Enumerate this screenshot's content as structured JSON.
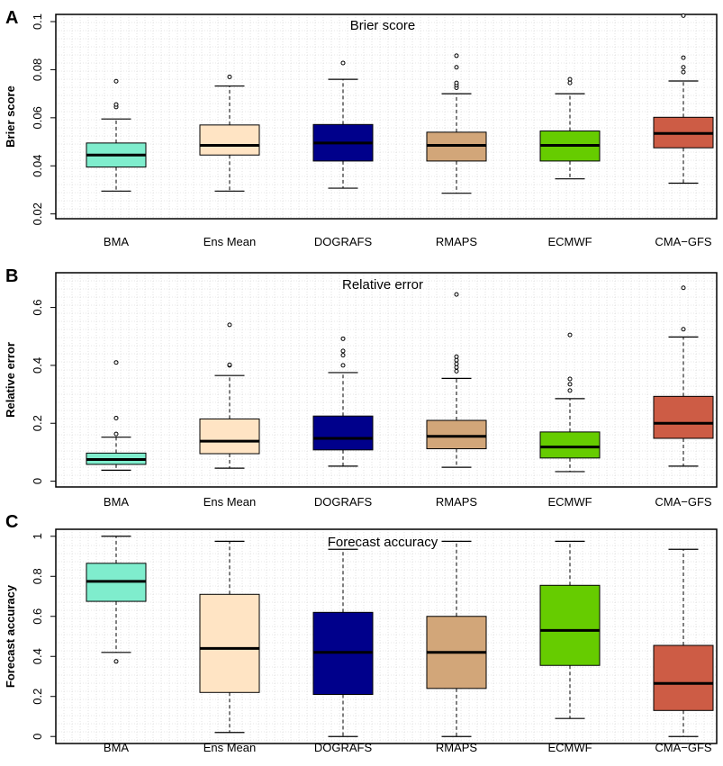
{
  "chart_data": [
    {
      "panel": "A",
      "type": "box",
      "title": "Brier score",
      "ylabel": "Brier score",
      "xlabel": "",
      "ylim": [
        0.018,
        0.103
      ],
      "yticks": [
        0.02,
        0.04,
        0.06,
        0.08,
        0.1
      ],
      "ytick_labels": [
        "0.02",
        "0.04",
        "0.06",
        "0.08",
        "0.1"
      ],
      "grid": true,
      "categories": [
        "BMA",
        "Ens Mean",
        "DOGRAFS",
        "RMAPS",
        "ECMWF",
        "CMA−GFS"
      ],
      "boxes": [
        {
          "min": 0.0295,
          "q1": 0.0395,
          "median": 0.0445,
          "q3": 0.0495,
          "max": 0.0595,
          "outliers": [
            0.0645,
            0.0655,
            0.0752
          ]
        },
        {
          "min": 0.0295,
          "q1": 0.0445,
          "median": 0.0485,
          "q3": 0.057,
          "max": 0.0732,
          "outliers": [
            0.077
          ]
        },
        {
          "min": 0.0307,
          "q1": 0.042,
          "median": 0.0495,
          "q3": 0.0572,
          "max": 0.076,
          "outliers": [
            0.0828
          ]
        },
        {
          "min": 0.0286,
          "q1": 0.042,
          "median": 0.0485,
          "q3": 0.054,
          "max": 0.07,
          "outliers": [
            0.0725,
            0.0735,
            0.0745,
            0.081,
            0.0858
          ]
        },
        {
          "min": 0.0346,
          "q1": 0.042,
          "median": 0.0485,
          "q3": 0.0545,
          "max": 0.07,
          "outliers": [
            0.0745,
            0.076
          ]
        },
        {
          "min": 0.0328,
          "q1": 0.0475,
          "median": 0.0535,
          "q3": 0.0602,
          "max": 0.0753,
          "outliers": [
            0.079,
            0.081,
            0.085,
            0.1025
          ]
        }
      ]
    },
    {
      "panel": "B",
      "type": "box",
      "title": "Relative error",
      "ylabel": "Relative error",
      "xlabel": "",
      "ylim": [
        -0.02,
        0.72
      ],
      "yticks": [
        0,
        0.2,
        0.4,
        0.6
      ],
      "ytick_labels": [
        "0",
        "0.2",
        "0.4",
        "0.6"
      ],
      "grid": true,
      "categories": [
        "BMA",
        "Ens Mean",
        "DOGRAFS",
        "RMAPS",
        "ECMWF",
        "CMA−GFS"
      ],
      "boxes": [
        {
          "min": 0.038,
          "q1": 0.058,
          "median": 0.075,
          "q3": 0.097,
          "max": 0.152,
          "outliers": [
            0.163,
            0.218,
            0.41
          ]
        },
        {
          "min": 0.045,
          "q1": 0.095,
          "median": 0.138,
          "q3": 0.215,
          "max": 0.365,
          "outliers": [
            0.4,
            0.402,
            0.54
          ]
        },
        {
          "min": 0.052,
          "q1": 0.108,
          "median": 0.148,
          "q3": 0.225,
          "max": 0.375,
          "outliers": [
            0.4,
            0.435,
            0.45,
            0.492
          ]
        },
        {
          "min": 0.048,
          "q1": 0.112,
          "median": 0.155,
          "q3": 0.21,
          "max": 0.355,
          "outliers": [
            0.38,
            0.393,
            0.405,
            0.418,
            0.43,
            0.645
          ]
        },
        {
          "min": 0.033,
          "q1": 0.08,
          "median": 0.118,
          "q3": 0.17,
          "max": 0.285,
          "outliers": [
            0.313,
            0.335,
            0.353,
            0.505
          ]
        },
        {
          "min": 0.052,
          "q1": 0.148,
          "median": 0.2,
          "q3": 0.293,
          "max": 0.498,
          "outliers": [
            0.525,
            0.668
          ]
        }
      ]
    },
    {
      "panel": "C",
      "type": "box",
      "title": "Forecast accuracy",
      "ylabel": "Forecast accuracy",
      "xlabel": "",
      "ylim": [
        -0.035,
        1.035
      ],
      "yticks": [
        0,
        0.2,
        0.4,
        0.6,
        0.8,
        1
      ],
      "ytick_labels": [
        "0",
        "0.2",
        "0.4",
        "0.6",
        "0.8",
        "1"
      ],
      "grid": true,
      "categories": [
        "BMA",
        "Ens Mean",
        "DOGRAFS",
        "RMAPS",
        "ECMWF",
        "CMA−GFS"
      ],
      "boxes": [
        {
          "min": 0.42,
          "q1": 0.675,
          "median": 0.775,
          "q3": 0.865,
          "max": 1.0,
          "outliers": [
            0.375
          ]
        },
        {
          "min": 0.02,
          "q1": 0.22,
          "median": 0.44,
          "q3": 0.71,
          "max": 0.975,
          "outliers": []
        },
        {
          "min": 0.0,
          "q1": 0.21,
          "median": 0.42,
          "q3": 0.62,
          "max": 0.935,
          "outliers": []
        },
        {
          "min": 0.0,
          "q1": 0.24,
          "median": 0.42,
          "q3": 0.6,
          "max": 0.975,
          "outliers": []
        },
        {
          "min": 0.09,
          "q1": 0.355,
          "median": 0.53,
          "q3": 0.755,
          "max": 0.975,
          "outliers": []
        },
        {
          "min": 0.0,
          "q1": 0.13,
          "median": 0.265,
          "q3": 0.455,
          "max": 0.935,
          "outliers": []
        }
      ]
    }
  ],
  "box_colors": [
    "#7fedcd",
    "#ffe4c4",
    "#00008b",
    "#d2a679",
    "#66cc00",
    "#cd5c45"
  ]
}
